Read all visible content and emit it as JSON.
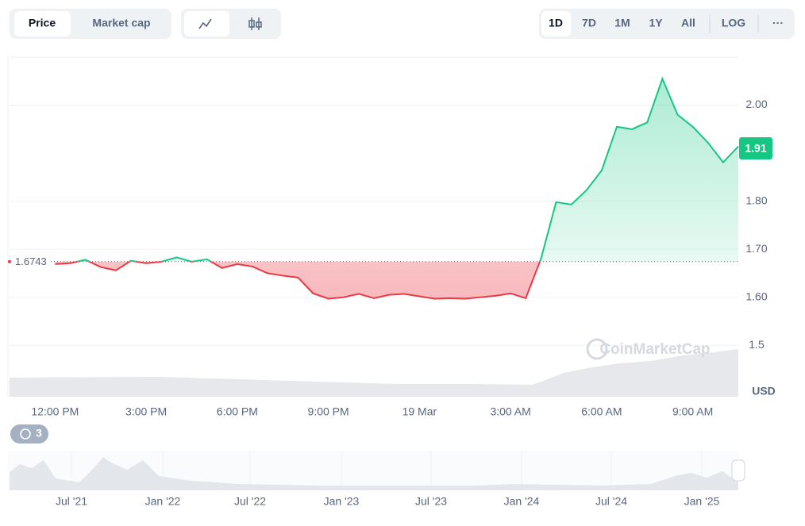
{
  "toolbar": {
    "tabs": [
      "Price",
      "Market cap"
    ],
    "ranges": [
      "1D",
      "7D",
      "1M",
      "1Y",
      "All"
    ],
    "log": "LOG",
    "more": "···"
  },
  "watermark": "CoinMarketCap",
  "badge": "3",
  "navigator": {
    "labels": [
      "Jul '21",
      "Jan '22",
      "Jul '22",
      "Jan '23",
      "Jul '23",
      "Jan '24",
      "Jul '24",
      "Jan '25"
    ]
  },
  "chart_data": {
    "type": "line",
    "categories": [
      null,
      null,
      null,
      "12:00 PM",
      null,
      null,
      null,
      null,
      null,
      "3:00 PM",
      null,
      null,
      null,
      null,
      null,
      "6:00 PM",
      null,
      null,
      null,
      null,
      null,
      "9:00 PM",
      null,
      null,
      null,
      null,
      null,
      "19 Mar",
      null,
      null,
      null,
      null,
      null,
      "3:00 AM",
      null,
      null,
      null,
      null,
      null,
      "6:00 AM",
      null,
      null,
      null,
      null,
      null,
      "9:00 AM",
      null,
      null,
      null
    ],
    "values": [
      null,
      null,
      null,
      1.669,
      1.671,
      1.678,
      1.663,
      1.656,
      1.676,
      1.671,
      1.674,
      1.683,
      1.674,
      1.679,
      1.661,
      1.669,
      1.664,
      1.65,
      1.645,
      1.641,
      1.608,
      1.597,
      1.6,
      1.607,
      1.598,
      1.605,
      1.607,
      1.602,
      1.597,
      1.598,
      1.597,
      1.6,
      1.603,
      1.608,
      1.598,
      1.68,
      1.798,
      1.793,
      1.823,
      1.864,
      1.955,
      1.95,
      1.964,
      2.055,
      1.98,
      1.955,
      1.922,
      1.881,
      1.914
    ],
    "baseline": 1.6743,
    "current_price": 1.91,
    "currency": "USD",
    "up_color": "#16c784",
    "down_color": "#ea3943",
    "ylim": [
      1.393,
      2.1
    ],
    "yticks": [
      1.5,
      {
        "value": 1.6,
        "label": "1.60"
      },
      {
        "value": 1.7,
        "label": "1.70"
      },
      {
        "value": 1.8,
        "label": "1.80"
      },
      {
        "value": 2.0,
        "label": "2.00"
      }
    ],
    "grid": true
  }
}
